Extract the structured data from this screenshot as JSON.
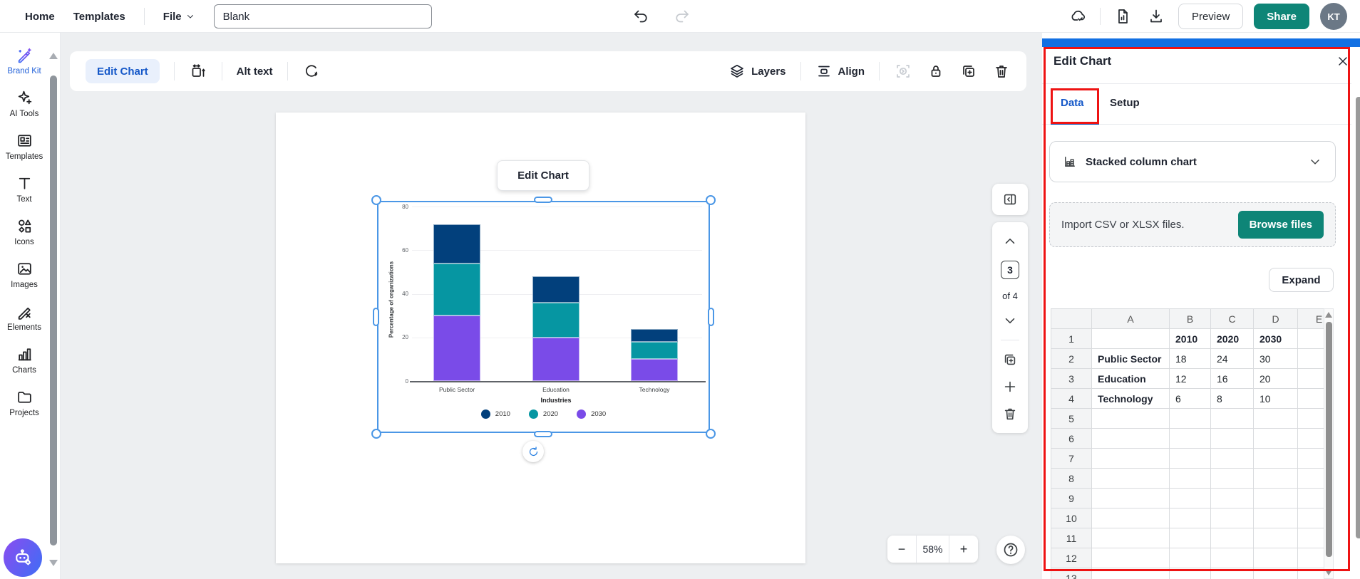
{
  "topbar": {
    "home": "Home",
    "templates": "Templates",
    "file": "File",
    "doc_title": "Blank",
    "preview": "Preview",
    "share": "Share",
    "avatar": "KT"
  },
  "sidebar": {
    "items": [
      {
        "label": "Brand Kit",
        "icon": "wand",
        "active": true
      },
      {
        "label": "AI Tools",
        "icon": "sparkles",
        "active": false
      },
      {
        "label": "Templates",
        "icon": "template",
        "active": false
      },
      {
        "label": "Text",
        "icon": "text",
        "active": false
      },
      {
        "label": "Icons",
        "icon": "shapes",
        "active": false
      },
      {
        "label": "Images",
        "icon": "image",
        "active": false
      },
      {
        "label": "Elements",
        "icon": "elements",
        "active": false
      },
      {
        "label": "Charts",
        "icon": "chart-bars",
        "active": false
      },
      {
        "label": "Projects",
        "icon": "folder",
        "active": false
      }
    ]
  },
  "canvas_toolbar": {
    "edit_chart": "Edit Chart",
    "alt_text": "Alt text",
    "layers": "Layers",
    "align": "Align"
  },
  "canvas": {
    "edit_chart_button": "Edit Chart"
  },
  "page_nav": {
    "current": "3",
    "of_label": "of 4"
  },
  "zoom": {
    "minus": "−",
    "level": "58%",
    "plus": "+"
  },
  "panel": {
    "title": "Edit Chart",
    "tabs": [
      {
        "label": "Data",
        "active": true
      },
      {
        "label": "Setup",
        "active": false
      }
    ],
    "chart_type": "Stacked column chart",
    "import_text": "Import CSV or XLSX files.",
    "browse_button": "Browse files",
    "expand_button": "Expand",
    "spreadsheet": {
      "columns": [
        "A",
        "B",
        "C",
        "D",
        "E"
      ],
      "rows": [
        [
          "",
          "2010",
          "2020",
          "2030",
          ""
        ],
        [
          "Public Sector",
          "18",
          "24",
          "30",
          ""
        ],
        [
          "Education",
          "12",
          "16",
          "20",
          ""
        ],
        [
          "Technology",
          "6",
          "8",
          "10",
          ""
        ],
        [
          "",
          "",
          "",
          "",
          ""
        ],
        [
          "",
          "",
          "",
          "",
          ""
        ],
        [
          "",
          "",
          "",
          "",
          ""
        ],
        [
          "",
          "",
          "",
          "",
          ""
        ],
        [
          "",
          "",
          "",
          "",
          ""
        ],
        [
          "",
          "",
          "",
          "",
          ""
        ],
        [
          "",
          "",
          "",
          "",
          ""
        ],
        [
          "",
          "",
          "",
          "",
          ""
        ],
        [
          "",
          "",
          "",
          "",
          ""
        ]
      ]
    }
  },
  "annotations": {
    "color": "#ee1313",
    "highlighted": [
      "edit-chart-panel",
      "data-tab"
    ]
  },
  "colors": {
    "accent_blue": "#1558c8",
    "teal_button": "#0e8577",
    "selection_blue": "#4b97e6",
    "panel_top_bar": "#1270e3"
  },
  "chart_data": {
    "type": "bar",
    "stacked": true,
    "categories": [
      "Public Sector",
      "Education",
      "Technology"
    ],
    "series": [
      {
        "name": "2010",
        "color": "#02407c",
        "values": [
          18,
          12,
          6
        ]
      },
      {
        "name": "2020",
        "color": "#0696a2",
        "values": [
          24,
          16,
          8
        ]
      },
      {
        "name": "2030",
        "color": "#7a4be8",
        "values": [
          30,
          20,
          10
        ]
      }
    ],
    "title": "",
    "xlabel": "Industries",
    "ylabel": "Percentage of organizations",
    "ylim": [
      0,
      80
    ],
    "yticks": [
      0,
      20,
      40,
      60,
      80
    ],
    "grid": true,
    "legend_position": "bottom"
  }
}
